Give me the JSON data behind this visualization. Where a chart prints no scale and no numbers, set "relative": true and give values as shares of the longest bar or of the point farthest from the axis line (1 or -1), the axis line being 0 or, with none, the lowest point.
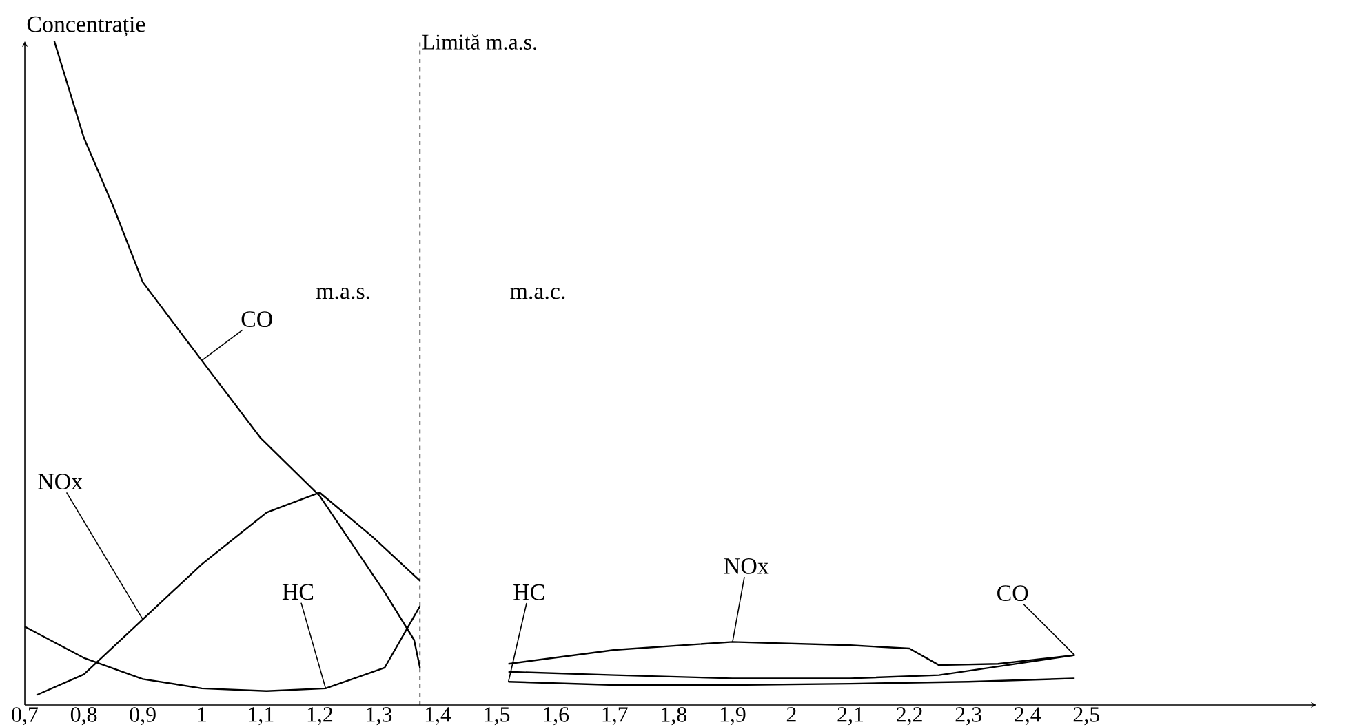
{
  "chart_data": {
    "type": "line",
    "relative": true,
    "ylabel": "Concentrație",
    "tick_labels": "x",
    "marker": "none",
    "line_style": "solid",
    "xlim": [
      0.7,
      2.89
    ],
    "xticks": [
      {
        "value": 0.7,
        "label": "0,7"
      },
      {
        "value": 0.8,
        "label": "0,8"
      },
      {
        "value": 0.9,
        "label": "0,9"
      },
      1,
      {
        "value": 1.1,
        "label": "1,1"
      },
      {
        "value": 1.2,
        "label": "1,2"
      },
      {
        "value": 1.3,
        "label": "1,3"
      },
      {
        "value": 1.4,
        "label": "1,4"
      },
      {
        "value": 1.5,
        "label": "1,5"
      },
      {
        "value": 1.6,
        "label": "1,6"
      },
      {
        "value": 1.7,
        "label": "1,7"
      },
      {
        "value": 1.8,
        "label": "1,8"
      },
      {
        "value": 1.9,
        "label": "1,9"
      },
      2,
      {
        "value": 2.1,
        "label": "2,1"
      },
      {
        "value": 2.2,
        "label": "2,2"
      },
      {
        "value": 2.3,
        "label": "2,3"
      },
      {
        "value": 2.4,
        "label": "2,4"
      },
      {
        "value": 2.5,
        "label": "2,5"
      }
    ],
    "series": [
      {
        "name": "CO",
        "color": "#000000",
        "x": [
          0.75,
          0.8,
          0.85,
          0.9,
          1.0,
          1.1,
          1.2,
          1.31,
          1.36,
          1.37
        ],
        "values": [
          1.0,
          0.855,
          0.751,
          0.637,
          0.519,
          0.402,
          0.315,
          0.17,
          0.098,
          0.056
        ]
      },
      {
        "name": "NOx",
        "color": "#000000",
        "x": [
          0.72,
          0.8,
          0.9,
          1.0,
          1.11,
          1.2,
          1.29,
          1.37
        ],
        "values": [
          0.015,
          0.046,
          0.129,
          0.212,
          0.29,
          0.32,
          0.253,
          0.187
        ]
      },
      {
        "name": "HC",
        "color": "#000000",
        "x": [
          0.7,
          0.8,
          0.9,
          1.0,
          1.11,
          1.21,
          1.31,
          1.37
        ],
        "values": [
          0.118,
          0.071,
          0.039,
          0.025,
          0.021,
          0.025,
          0.056,
          0.149
        ]
      },
      {
        "name": "CO",
        "color": "#000000",
        "x": [
          1.52,
          1.7,
          1.9,
          2.1,
          2.25,
          2.35,
          2.48
        ],
        "values": [
          0.05,
          0.045,
          0.04,
          0.04,
          0.045,
          0.058,
          0.075
        ]
      },
      {
        "name": "NOx",
        "color": "#000000",
        "x": [
          1.52,
          1.7,
          1.9,
          2.1,
          2.2,
          2.25,
          2.35,
          2.48
        ],
        "values": [
          0.062,
          0.083,
          0.095,
          0.09,
          0.085,
          0.06,
          0.062,
          0.075
        ]
      },
      {
        "name": "HC",
        "color": "#000000",
        "x": [
          1.52,
          1.7,
          1.9,
          2.1,
          2.3,
          2.48
        ],
        "values": [
          0.035,
          0.03,
          0.03,
          0.032,
          0.035,
          0.04
        ]
      }
    ],
    "ref_lines": [
      {
        "axis": "x",
        "value": 1.37,
        "label": "Limită m.a.s.",
        "line_style": "dashed"
      }
    ],
    "annotations": [
      "m.a.s.",
      "m.a.c."
    ]
  }
}
